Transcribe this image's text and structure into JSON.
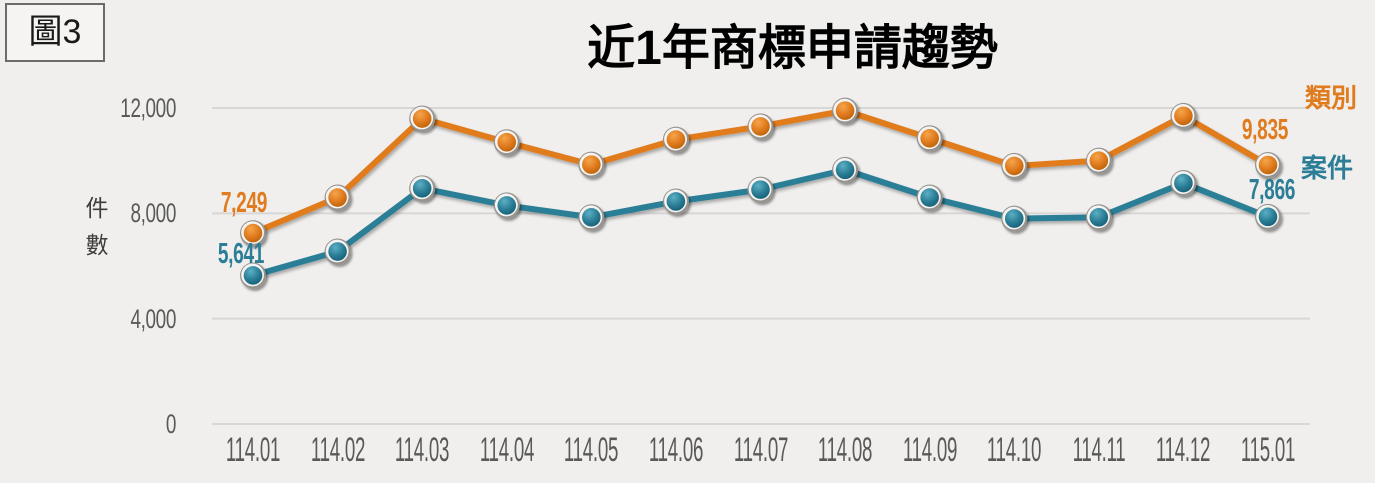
{
  "figure_tag": "圖3",
  "colors": {
    "background": "#f0efee",
    "gridline": "#d8d7d5",
    "tick_text": "#595959",
    "title_text": "#000000",
    "axis_title_text": "#3d3d3d",
    "figure_tag_border": "#6b6b6b",
    "categories_series": "#e07b1e",
    "cases_series": "#2b7e96"
  },
  "chart_data": {
    "type": "line",
    "title": "近1年商標申請趨勢",
    "ylabel": "件數",
    "xlabel": "",
    "grid": true,
    "legend_position": "right",
    "ylim": [
      0,
      12000
    ],
    "yticks": [
      0,
      4000,
      8000,
      12000
    ],
    "ytick_labels": [
      "0",
      "4,000",
      "8,000",
      "12,000"
    ],
    "x": [
      "114.01",
      "114.02",
      "114.03",
      "114.04",
      "114.05",
      "114.06",
      "114.07",
      "114.08",
      "114.09",
      "114.10",
      "114.11",
      "114.12",
      "115.01"
    ],
    "series": [
      {
        "name": "類別",
        "color": "#e07b1e",
        "color_light": "#f5a54b",
        "color_dark": "#b95f07",
        "values": [
          7249,
          8600,
          11600,
          10700,
          9850,
          10800,
          11300,
          11900,
          10850,
          9800,
          10000,
          11700,
          9835
        ]
      },
      {
        "name": "案件",
        "color": "#2b7e96",
        "color_light": "#5cb0c4",
        "color_dark": "#155d75",
        "values": [
          5641,
          6550,
          8950,
          8300,
          7850,
          8450,
          8900,
          9650,
          8600,
          7800,
          7850,
          9150,
          7866
        ]
      }
    ],
    "annotations": [
      {
        "series": "類別",
        "point": "114.01",
        "text": "7,249"
      },
      {
        "series": "案件",
        "point": "114.01",
        "text": "5,641"
      },
      {
        "series": "類別",
        "point": "115.01",
        "text": "9,835"
      },
      {
        "series": "案件",
        "point": "115.01",
        "text": "7,866"
      }
    ]
  }
}
